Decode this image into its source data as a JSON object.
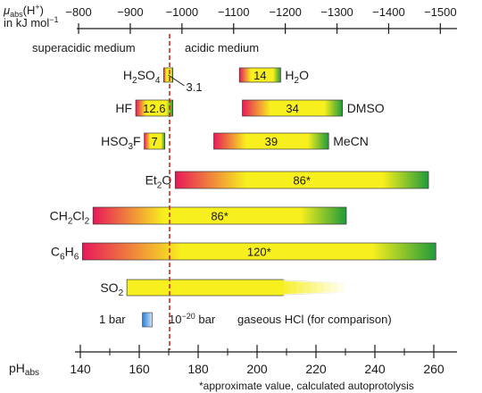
{
  "chart_data": {
    "type": "bar",
    "top_axis": {
      "label_line1": "μ",
      "label_sub": "abs",
      "label_paren": "(H",
      "label_sup": "+",
      "label_close": ")",
      "label_line2": "in kJ mol",
      "label_line2_sup": "−1",
      "ticks": [
        "−800",
        "−900",
        "−1000",
        "−1100",
        "−1200",
        "−1300",
        "−1400",
        "−1500"
      ],
      "tick_values": [
        -800,
        -900,
        -1000,
        -1100,
        -1200,
        -1300,
        -1400,
        -1500
      ]
    },
    "bottom_axis": {
      "label_main": "pH",
      "label_sub": "abs",
      "ticks": [
        "140",
        "160",
        "180",
        "200",
        "220",
        "240",
        "260"
      ],
      "tick_values": [
        140,
        160,
        180,
        200,
        220,
        240,
        260
      ],
      "range": [
        137,
        266
      ]
    },
    "divider_ph": 170.3,
    "region_labels": {
      "left": "superacidic medium",
      "right": "acidic medium"
    },
    "bars": [
      {
        "id": "h2so4",
        "label_main": "H",
        "label_sub1": "2",
        "label_main2": "SO",
        "label_sub2": "4",
        "value_label": "",
        "callout": "3.1",
        "start": 168.3,
        "end": 171.4
      },
      {
        "id": "h2o",
        "label_main": "H",
        "label_sub1": "2",
        "label_main2": "O",
        "label_sub2": "",
        "value_label": "14",
        "callout": "",
        "start": 194,
        "end": 208
      },
      {
        "id": "hf",
        "label_main": "HF",
        "label_sub1": "",
        "label_main2": "",
        "label_sub2": "",
        "value_label": "12.6",
        "callout": "",
        "start": 158.8,
        "end": 171.4
      },
      {
        "id": "dmso",
        "label_main": "DMSO",
        "label_sub1": "",
        "label_main2": "",
        "label_sub2": "",
        "value_label": "34",
        "callout": "",
        "start": 195,
        "end": 229
      },
      {
        "id": "hso3f",
        "label_main": "HSO",
        "label_sub1": "3",
        "label_main2": "F",
        "label_sub2": "",
        "value_label": "7",
        "callout": "",
        "start": 161.7,
        "end": 168.7
      },
      {
        "id": "mecn",
        "label_main": "MeCN",
        "label_sub1": "",
        "label_main2": "",
        "label_sub2": "",
        "value_label": "39",
        "callout": "",
        "start": 185.3,
        "end": 224.3
      },
      {
        "id": "et2o",
        "label_main": "Et",
        "label_sub1": "2",
        "label_main2": "O",
        "label_sub2": "",
        "value_label": "86*",
        "callout": "",
        "start": 172.2,
        "end": 258.2
      },
      {
        "id": "ch2cl2",
        "label_main": "CH",
        "label_sub1": "2",
        "label_main2": "Cl",
        "label_sub2": "2",
        "value_label": "86*",
        "callout": "",
        "start": 144.3,
        "end": 230.3
      },
      {
        "id": "c6h6",
        "label_main": "C",
        "label_sub1": "6",
        "label_main2": "H",
        "label_sub2": "6",
        "value_label": "120*",
        "callout": "",
        "start": 140.7,
        "end": 260.7
      },
      {
        "id": "so2",
        "label_main": "SO",
        "label_sub1": "2",
        "label_main2": "",
        "label_sub2": "",
        "value_label": "",
        "callout": "",
        "start": 155.8,
        "end": 229.5
      }
    ],
    "legend": {
      "pressure_high": "1 bar",
      "pressure_low_base": "10",
      "pressure_low_sup": "−20",
      "pressure_low_unit": " bar",
      "gas_label": "gaseous HCl (for comparison)",
      "start": 163.8,
      "end": 165.3
    },
    "footnote": "*approximate value, calculated autoprotolysis",
    "colors": {
      "acid": "#e8185a",
      "mid": "#f7ef1e",
      "base": "#1f9a3a",
      "divider": "#cc2a1e",
      "legend_blue": "#2c7fd6"
    }
  }
}
